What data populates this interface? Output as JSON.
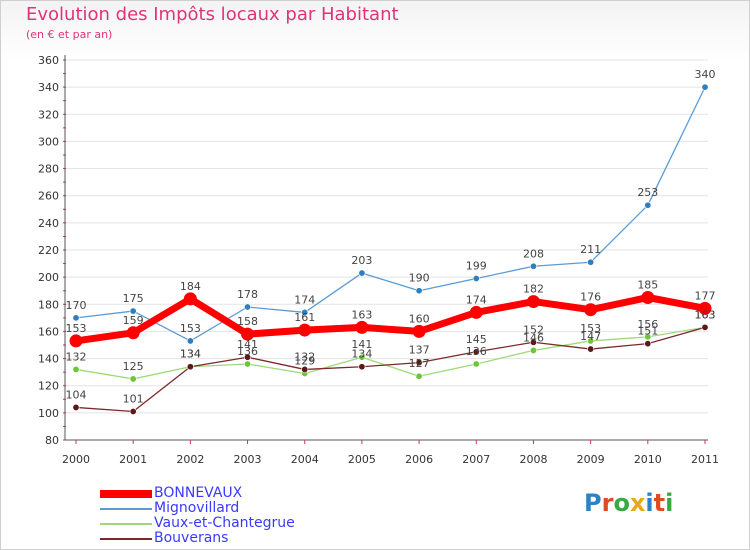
{
  "title": "Evolution des Impôts locaux par Habitant",
  "subtitle": "(en € et par an)",
  "logo": {
    "letters": [
      "P",
      "r",
      "o",
      "x",
      "i",
      "t",
      "i"
    ],
    "colors": [
      "#2b83c6",
      "#e04a1f",
      "#3aa845",
      "#e8a81a",
      "#2b83c6",
      "#e04a1f",
      "#3aa845"
    ]
  },
  "chart_data": {
    "type": "line",
    "title": "Evolution des Impôts locaux par Habitant",
    "subtitle": "(en € et par an)",
    "xlabel": "",
    "ylabel": "",
    "categories": [
      "2000",
      "2001",
      "2002",
      "2003",
      "2004",
      "2005",
      "2006",
      "2007",
      "2008",
      "2009",
      "2010",
      "2011"
    ],
    "ylim": [
      80,
      360
    ],
    "yticks": [
      80,
      100,
      120,
      140,
      160,
      180,
      200,
      220,
      240,
      260,
      280,
      300,
      320,
      340,
      360
    ],
    "grid": "horizontal",
    "legend_position": "bottom-left",
    "series": [
      {
        "name": "Mignovillard",
        "color": "#5b9bd5",
        "dot": "#2f7fbf",
        "width": 1.3,
        "values": [
          170,
          175,
          153,
          178,
          174,
          203,
          190,
          199,
          208,
          211,
          253,
          340
        ]
      },
      {
        "name": "Vaux-et-Chantegrue",
        "color": "#9fd97a",
        "dot": "#6dc53a",
        "width": 1.3,
        "values": [
          132,
          125,
          134,
          136,
          129,
          141,
          127,
          136,
          146,
          153,
          156,
          163
        ]
      },
      {
        "name": "Bouverans",
        "color": "#7a2a2a",
        "dot": "#5a1a1a",
        "width": 1.3,
        "values": [
          104,
          101,
          134,
          141,
          132,
          134,
          137,
          145,
          152,
          147,
          151,
          163
        ]
      },
      {
        "name": "BONNEVAUX",
        "color": "#ff0000",
        "dot": "#ff0000",
        "width": 7,
        "values": [
          153,
          159,
          184,
          158,
          161,
          163,
          160,
          174,
          182,
          176,
          185,
          177
        ]
      }
    ],
    "labels": {
      "Mignovillard": [
        "170",
        "175",
        "153",
        "178",
        "174",
        "203",
        "190",
        "199",
        "208",
        "211",
        "253",
        "340"
      ],
      "Vaux-et-Chantegrue": [
        "132",
        "125",
        "134",
        "136",
        "129",
        "141",
        "127",
        "136",
        "146",
        "153",
        "156",
        "163"
      ],
      "Bouverans": [
        "104",
        "101",
        "134",
        "141",
        "132",
        "134",
        "137",
        "145",
        "152",
        "147",
        "151",
        "163"
      ],
      "BONNEVAUX": [
        "153",
        "159",
        "184",
        "158",
        "161",
        "163",
        "160",
        "174",
        "182",
        "176",
        "185",
        "177"
      ]
    },
    "legend": [
      "BONNEVAUX",
      "Mignovillard",
      "Vaux-et-Chantegrue",
      "Bouverans"
    ]
  }
}
